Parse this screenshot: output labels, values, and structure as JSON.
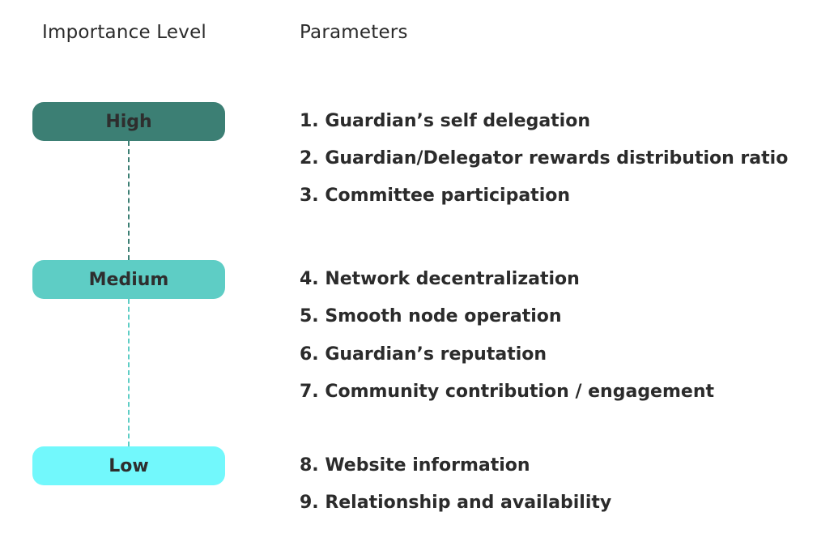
{
  "headers": {
    "level": "Importance Level",
    "params": "Parameters"
  },
  "colors": {
    "high": "#3c7f74",
    "medium": "#5ecdc5",
    "low": "#72f8fc",
    "connector_top": "#3c7f74",
    "connector_bottom": "#5ecdc5"
  },
  "levels": [
    {
      "label": "High"
    },
    {
      "label": "Medium"
    },
    {
      "label": "Low"
    }
  ],
  "parameters": [
    "1. Guardian’s self delegation",
    "2. Guardian/Delegator rewards distribution ratio",
    "3. Committee participation",
    "4. Network decentralization",
    "5. Smooth node operation",
    "6. Guardian’s reputation",
    "7. Community contribution / engagement",
    "8. Website information",
    "9. Relationship and availability"
  ]
}
